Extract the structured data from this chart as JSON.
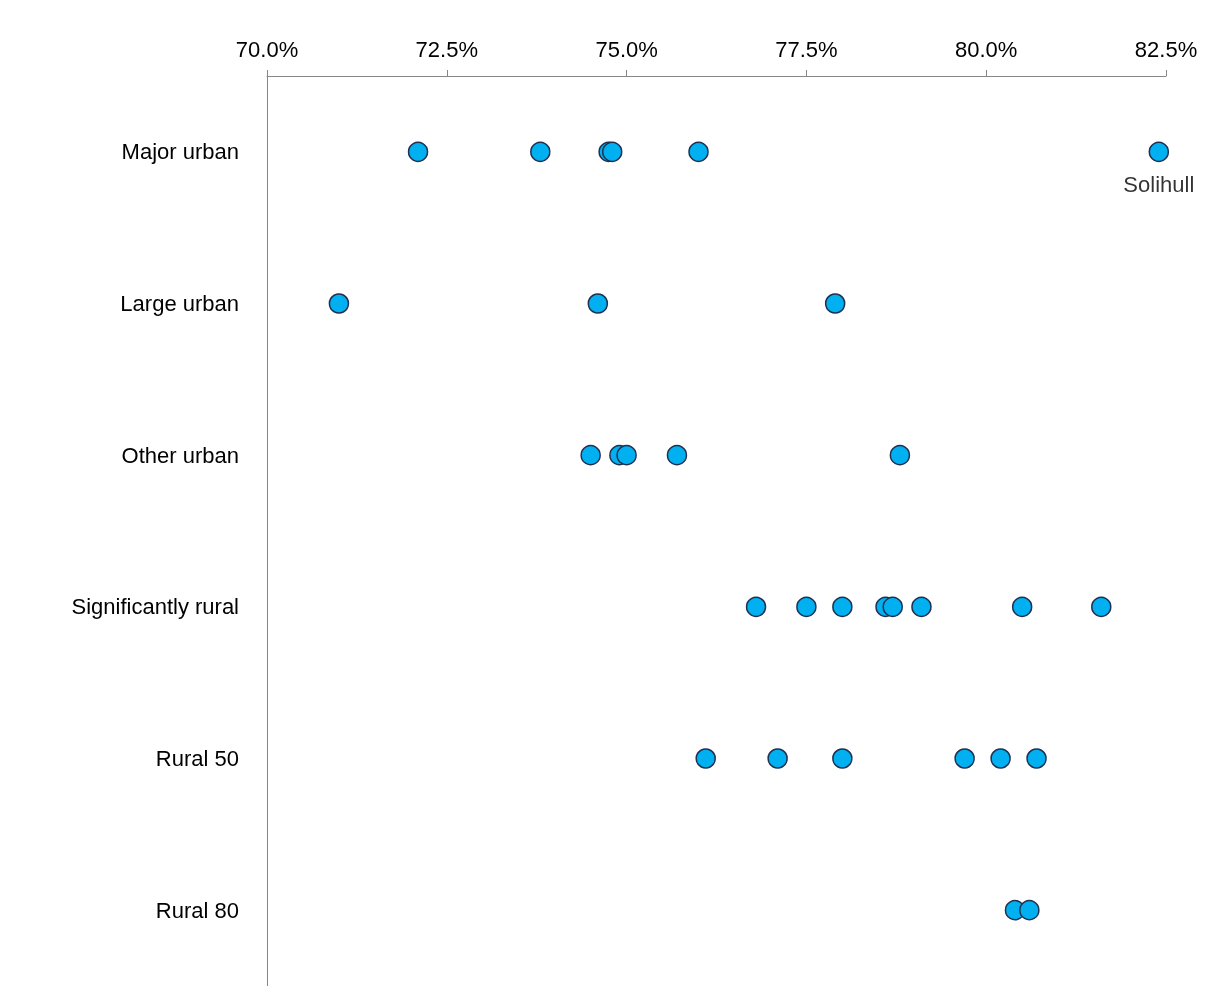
{
  "chart_data": {
    "type": "scatter",
    "orientation": "horizontal",
    "categories": [
      "Major urban",
      "Large urban",
      "Other urban",
      "Significantly rural",
      "Rural 50",
      "Rural 80"
    ],
    "series": [
      {
        "color": "#00b0f0",
        "x": [
          "Major urban",
          "Major urban",
          "Major urban",
          "Major urban",
          "Major urban",
          "Major urban",
          "Large urban",
          "Large urban",
          "Large urban",
          "Other urban",
          "Other urban",
          "Other urban",
          "Other urban",
          "Other urban",
          "Significantly rural",
          "Significantly rural",
          "Significantly rural",
          "Significantly rural",
          "Significantly rural",
          "Significantly rural",
          "Significantly rural",
          "Significantly rural",
          "Rural 50",
          "Rural 50",
          "Rural 50",
          "Rural 50",
          "Rural 50",
          "Rural 50",
          "Rural 80",
          "Rural 80"
        ],
        "values": [
          72.1,
          73.8,
          74.75,
          74.8,
          76.0,
          82.4,
          71.0,
          74.6,
          77.9,
          74.5,
          74.9,
          75.0,
          75.7,
          78.8,
          76.8,
          77.5,
          78.0,
          78.6,
          78.7,
          79.1,
          80.5,
          81.6,
          76.1,
          77.1,
          78.0,
          79.7,
          80.2,
          80.7,
          80.4,
          80.6
        ]
      }
    ],
    "xlim": [
      70,
      82.5
    ],
    "xticks": [
      {
        "value": 70,
        "label": "70.0%"
      },
      {
        "value": 72.5,
        "label": "72.5%"
      },
      {
        "value": 75,
        "label": "75.0%"
      },
      {
        "value": 77.5,
        "label": "77.5%"
      },
      {
        "value": 80,
        "label": "80.0%"
      },
      {
        "value": 82.5,
        "label": "82.5%"
      }
    ],
    "annotations": [
      {
        "text": "Solihull",
        "x": 82.4,
        "y": "Major urban"
      }
    ],
    "marker": "circle",
    "grid": false
  }
}
